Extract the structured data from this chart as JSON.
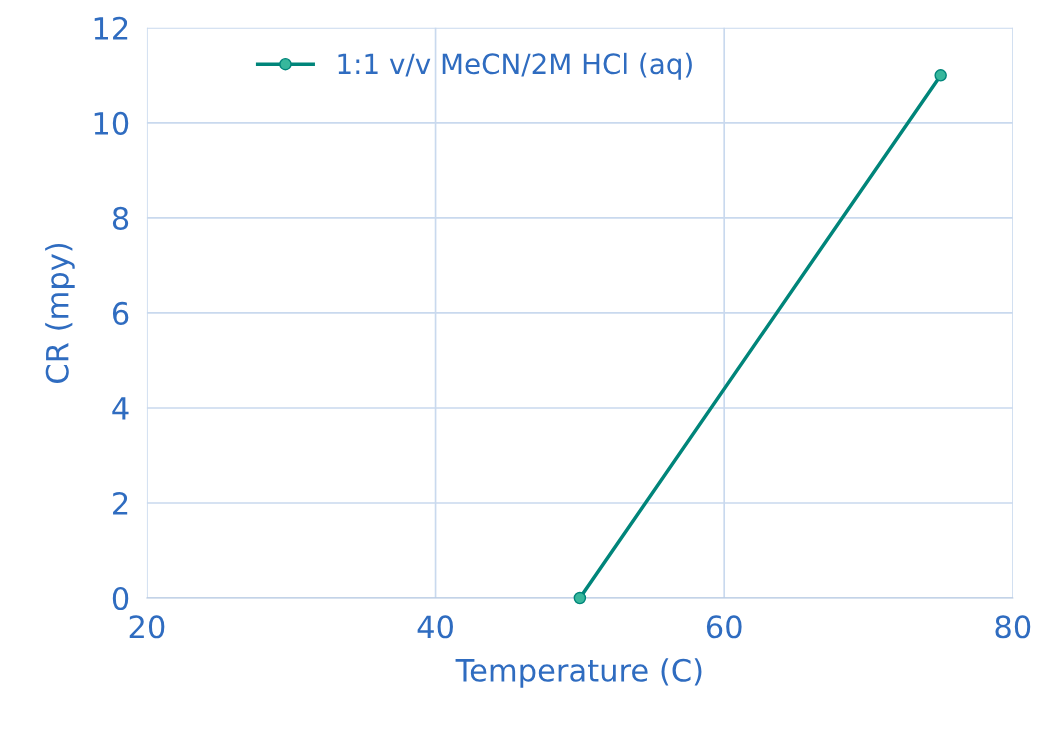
{
  "chart_data": {
    "type": "line",
    "xlabel": "Temperature (C)",
    "ylabel": "CR (mpy)",
    "x": [
      50,
      75
    ],
    "series": [
      {
        "name": "1:1 v/v MeCN/2M HCl (aq)",
        "color": "#00857a",
        "values": [
          0,
          11
        ]
      }
    ],
    "xlim": [
      20,
      80
    ],
    "xticks": [
      20,
      40,
      60,
      80
    ],
    "ylim": [
      0,
      12
    ],
    "yticks": [
      0,
      2,
      4,
      6,
      8,
      10,
      12
    ],
    "grid": true,
    "legend": "top",
    "marker": "circle",
    "line_style": "solid"
  }
}
